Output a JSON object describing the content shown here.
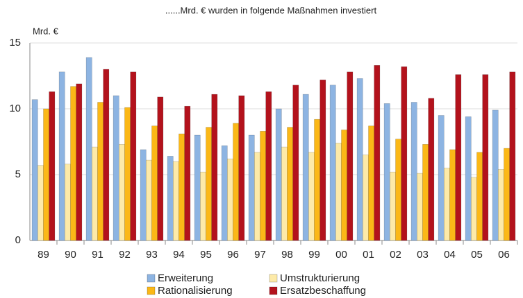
{
  "chart_data": {
    "type": "bar",
    "title": "......Mrd. € wurden in folgende Maßnahmen investiert",
    "y_label": "Mrd. €",
    "categories": [
      "89",
      "90",
      "91",
      "92",
      "93",
      "94",
      "95",
      "96",
      "97",
      "98",
      "99",
      "00",
      "01",
      "02",
      "03",
      "04",
      "05",
      "06"
    ],
    "series": [
      {
        "name": "Erweiterung",
        "color": "#8db4e2",
        "values": [
          10.7,
          12.8,
          13.9,
          11.0,
          6.9,
          6.4,
          8.0,
          7.2,
          8.0,
          10.0,
          11.1,
          11.8,
          12.3,
          10.4,
          10.5,
          9.5,
          9.4,
          9.9
        ]
      },
      {
        "name": "Umstrukturierung",
        "color": "#fdeaa8",
        "values": [
          5.7,
          5.8,
          7.1,
          7.3,
          6.1,
          6.0,
          5.2,
          6.2,
          6.7,
          7.1,
          6.7,
          7.4,
          6.5,
          5.2,
          5.1,
          5.5,
          4.8,
          5.4
        ]
      },
      {
        "name": "Rationalisierung",
        "color": "#fbb817",
        "values": [
          10.0,
          11.7,
          10.5,
          10.1,
          8.7,
          8.1,
          8.6,
          8.9,
          8.3,
          8.6,
          9.2,
          8.4,
          8.7,
          7.7,
          7.3,
          6.9,
          6.7,
          7.0
        ]
      },
      {
        "name": "Ersatzbeschaffung",
        "color": "#b3121c",
        "values": [
          11.3,
          11.9,
          13.0,
          12.8,
          10.9,
          10.2,
          11.1,
          11.0,
          11.3,
          11.8,
          12.2,
          12.8,
          13.3,
          13.2,
          10.8,
          12.6,
          12.6,
          12.8
        ]
      }
    ],
    "ylim": [
      0,
      15
    ],
    "yticks": [
      0,
      5,
      10,
      15
    ],
    "grid": true
  }
}
